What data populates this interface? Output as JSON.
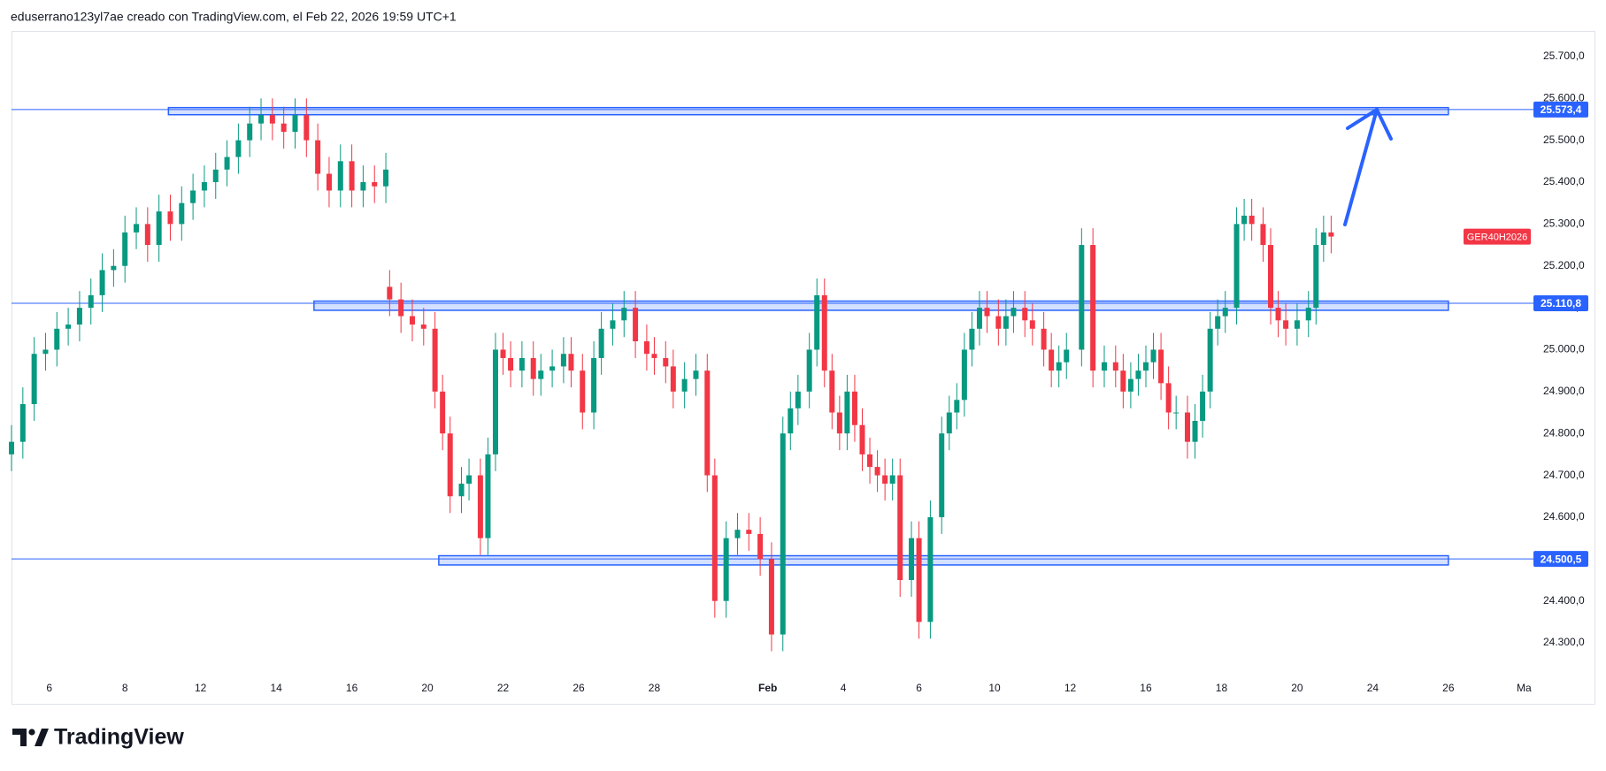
{
  "header": {
    "text": "eduserrano123yl7ae creado con TradingView.com, el Feb 22, 2026 19:59 UTC+1"
  },
  "brand": "TradingView",
  "chart_data": {
    "type": "candlestick",
    "symbol": "GER40H2026",
    "up_color": "#089981",
    "down_color": "#f23645",
    "level_color": "#2962ff",
    "xlim": [
      -1,
      39.25
    ],
    "ylim": [
      24222,
      25761
    ],
    "xticks": [
      {
        "value": 0,
        "label": "6"
      },
      {
        "value": 2,
        "label": "8"
      },
      {
        "value": 4,
        "label": "12"
      },
      {
        "value": 6,
        "label": "14"
      },
      {
        "value": 8,
        "label": "16"
      },
      {
        "value": 10,
        "label": "20"
      },
      {
        "value": 12,
        "label": "22"
      },
      {
        "value": 14,
        "label": "26"
      },
      {
        "value": 16,
        "label": "28"
      },
      {
        "value": 19,
        "label": "Feb"
      },
      {
        "value": 21,
        "label": "4"
      },
      {
        "value": 23,
        "label": "6"
      },
      {
        "value": 25,
        "label": "10"
      },
      {
        "value": 27,
        "label": "12"
      },
      {
        "value": 29,
        "label": "16"
      },
      {
        "value": 31,
        "label": "18"
      },
      {
        "value": 33,
        "label": "20"
      },
      {
        "value": 35,
        "label": "24"
      },
      {
        "value": 37,
        "label": "26"
      },
      {
        "value": 39,
        "label": "Ma"
      }
    ],
    "yticks": [
      {
        "value": 24300,
        "label": "24.300,0"
      },
      {
        "value": 24400,
        "label": "24.400,0"
      },
      {
        "value": 24500,
        "label": "24.500,0"
      },
      {
        "value": 24600,
        "label": "24.600,0"
      },
      {
        "value": 24700,
        "label": "24.700,0"
      },
      {
        "value": 24800,
        "label": "24.800,0"
      },
      {
        "value": 24900,
        "label": "24.900,0"
      },
      {
        "value": 25000,
        "label": "25.000,0"
      },
      {
        "value": 25100,
        "label": "25.100,0"
      },
      {
        "value": 25200,
        "label": "25.200,0"
      },
      {
        "value": 25300,
        "label": "25.300,0"
      },
      {
        "value": 25400,
        "label": "25.400,0"
      },
      {
        "value": 25500,
        "label": "25.500,0"
      },
      {
        "value": 25600,
        "label": "25.600,0"
      },
      {
        "value": 25700,
        "label": "25.700,0"
      }
    ],
    "levels": [
      {
        "value": 25573.4,
        "label": "25.573,4"
      },
      {
        "value": 25110.8,
        "label": "25.110,8"
      },
      {
        "value": 24500.5,
        "label": "24.500,5"
      }
    ],
    "zones": [
      {
        "x0": 3.15,
        "x1": 37,
        "y0": 25561,
        "y1": 25578
      },
      {
        "x0": 7,
        "x1": 37,
        "y0": 25094,
        "y1": 25116
      },
      {
        "x0": 10.3,
        "x1": 37,
        "y0": 24486,
        "y1": 24508
      }
    ],
    "x": [
      -1.0,
      -0.7,
      -0.4,
      -0.1,
      0.2,
      0.5,
      0.8,
      1.1,
      1.4,
      1.7,
      2.0,
      2.3,
      2.6,
      2.9,
      3.2,
      3.5,
      3.8,
      4.1,
      4.4,
      4.7,
      5.0,
      5.3,
      5.6,
      5.9,
      6.2,
      6.5,
      6.8,
      7.1,
      7.4,
      7.7,
      8.0,
      8.3,
      8.6,
      8.9,
      9.0,
      9.3,
      9.6,
      9.9,
      10.2,
      10.4,
      10.6,
      10.9,
      11.1,
      11.4,
      11.6,
      11.8,
      12.0,
      12.2,
      12.5,
      12.8,
      13.0,
      13.3,
      13.6,
      13.8,
      14.1,
      14.4,
      14.6,
      14.9,
      15.2,
      15.5,
      15.8,
      16.0,
      16.3,
      16.5,
      16.8,
      17.1,
      17.4,
      17.6,
      17.9,
      18.2,
      18.5,
      18.8,
      19.1,
      19.4,
      19.6,
      19.8,
      20.1,
      20.3,
      20.5,
      20.7,
      20.9,
      21.1,
      21.3,
      21.5,
      21.7,
      21.9,
      22.1,
      22.3,
      22.5,
      22.8,
      23.0,
      23.3,
      23.6,
      23.8,
      24.0,
      24.2,
      24.4,
      24.6,
      24.8,
      25.1,
      25.3,
      25.5,
      25.8,
      26.0,
      26.3,
      26.5,
      26.7,
      26.9,
      27.3,
      27.6,
      27.9,
      28.2,
      28.4,
      28.6,
      28.8,
      29.0,
      29.2,
      29.4,
      29.6,
      29.8,
      30.1,
      30.3,
      30.5,
      30.7,
      30.9,
      31.1,
      31.4,
      31.6,
      31.8,
      32.1,
      32.3,
      32.5,
      32.7,
      33.0,
      33.3,
      33.5,
      33.7,
      33.9
    ],
    "open": [
      24750,
      24780,
      24870,
      24990,
      25000,
      25050,
      25060,
      25100,
      25130,
      25190,
      25200,
      25280,
      25300,
      25250,
      25330,
      25300,
      25350,
      25380,
      25400,
      25430,
      25460,
      25500,
      25540,
      25560,
      25540,
      25520,
      25560,
      25500,
      25420,
      25380,
      25450,
      25380,
      25400,
      25390,
      25150,
      25120,
      25080,
      25060,
      25050,
      24900,
      24800,
      24650,
      24680,
      24700,
      24550,
      24750,
      25000,
      24980,
      24950,
      24980,
      24930,
      24950,
      24960,
      24990,
      24950,
      24850,
      24980,
      25050,
      25070,
      25100,
      25020,
      24990,
      24980,
      24960,
      24900,
      24930,
      24950,
      24700,
      24400,
      24550,
      24570,
      24560,
      24500,
      24320,
      24800,
      24860,
      24900,
      25000,
      25130,
      24950,
      24850,
      24800,
      24900,
      24820,
      24750,
      24720,
      24700,
      24680,
      24700,
      24450,
      24550,
      24350,
      24600,
      24800,
      24850,
      24880,
      25000,
      25050,
      25100,
      25080,
      25050,
      25080,
      25100,
      25070,
      25050,
      25000,
      24950,
      24970,
      25000,
      25250,
      24950,
      24970,
      24950,
      24900,
      24930,
      24950,
      24970,
      25000,
      24920,
      24850,
      24850,
      24780,
      24830,
      24900,
      25050,
      25080,
      25100,
      25300,
      25320,
      25300,
      25250,
      25100,
      25070,
      25050,
      25070,
      25100,
      25250,
      25280
    ],
    "high": [
      24820,
      24910,
      25030,
      25040,
      25090,
      25100,
      25140,
      25170,
      25230,
      25240,
      25320,
      25340,
      25340,
      25370,
      25370,
      25390,
      25420,
      25440,
      25470,
      25500,
      25540,
      25580,
      25600,
      25600,
      25580,
      25600,
      25600,
      25540,
      25460,
      25490,
      25490,
      25440,
      25440,
      25470,
      25190,
      25160,
      25120,
      25100,
      25090,
      24940,
      24840,
      24720,
      24740,
      24740,
      24790,
      25040,
      25040,
      25020,
      25020,
      25020,
      24990,
      25000,
      25030,
      25030,
      24990,
      25020,
      25090,
      25110,
      25140,
      25140,
      25060,
      25030,
      25020,
      25000,
      24970,
      24990,
      24990,
      24740,
      24590,
      24610,
      24610,
      24600,
      24540,
      24840,
      24900,
      24940,
      25040,
      25170,
      25170,
      24990,
      24890,
      24940,
      24940,
      24860,
      24790,
      24760,
      24740,
      24740,
      24740,
      24590,
      24590,
      24640,
      24840,
      24890,
      24920,
      25040,
      25090,
      25140,
      25140,
      25120,
      25120,
      25140,
      25140,
      25110,
      25090,
      25040,
      25010,
      25040,
      25290,
      25290,
      25010,
      25010,
      24990,
      24970,
      24990,
      25010,
      25040,
      25040,
      24960,
      24890,
      24890,
      24870,
      24940,
      25090,
      25120,
      25140,
      25340,
      25360,
      25360,
      25340,
      25290,
      25140,
      25110,
      25110,
      25140,
      25290,
      25320,
      25320
    ],
    "low": [
      24710,
      24740,
      24830,
      24950,
      24960,
      25010,
      25020,
      25060,
      25090,
      25150,
      25160,
      25240,
      25210,
      25210,
      25260,
      25260,
      25310,
      25340,
      25360,
      25390,
      25420,
      25460,
      25500,
      25500,
      25480,
      25480,
      25460,
      25380,
      25340,
      25340,
      25340,
      25340,
      25350,
      25350,
      25080,
      25040,
      25020,
      25010,
      24860,
      24760,
      24610,
      24610,
      24640,
      24510,
      24510,
      24710,
      24940,
      24910,
      24910,
      24890,
      24890,
      24910,
      24920,
      24910,
      24810,
      24810,
      24940,
      25010,
      25030,
      24980,
      24950,
      24940,
      24920,
      24860,
      24860,
      24890,
      24660,
      24360,
      24360,
      24510,
      24520,
      24460,
      24280,
      24280,
      24760,
      24820,
      24860,
      24960,
      24910,
      24810,
      24760,
      24760,
      24780,
      24710,
      24680,
      24660,
      24640,
      24640,
      24410,
      24410,
      24310,
      24310,
      24560,
      24760,
      24810,
      24840,
      24960,
      25010,
      25040,
      25010,
      25010,
      25040,
      25030,
      25010,
      24960,
      24910,
      24910,
      24930,
      24960,
      24910,
      24910,
      24910,
      24860,
      24860,
      24890,
      24910,
      24930,
      24880,
      24810,
      24810,
      24740,
      24740,
      24790,
      24860,
      25010,
      25040,
      25060,
      25260,
      25260,
      25210,
      25060,
      25030,
      25010,
      25010,
      25030,
      25060,
      25210,
      25230
    ],
    "close": [
      24780,
      24870,
      24990,
      25000,
      25050,
      25060,
      25100,
      25130,
      25190,
      25200,
      25280,
      25300,
      25250,
      25330,
      25300,
      25350,
      25380,
      25400,
      25430,
      25460,
      25500,
      25540,
      25560,
      25540,
      25520,
      25560,
      25500,
      25420,
      25380,
      25450,
      25380,
      25400,
      25390,
      25430,
      25120,
      25080,
      25060,
      25050,
      24900,
      24800,
      24650,
      24680,
      24700,
      24550,
      24750,
      25000,
      24980,
      24950,
      24980,
      24930,
      24950,
      24960,
      24990,
      24950,
      24850,
      24980,
      25050,
      25070,
      25100,
      25020,
      24990,
      24980,
      24960,
      24900,
      24930,
      24950,
      24700,
      24400,
      24550,
      24570,
      24560,
      24500,
      24320,
      24800,
      24860,
      24900,
      25000,
      25130,
      24950,
      24850,
      24800,
      24900,
      24820,
      24750,
      24720,
      24700,
      24680,
      24700,
      24450,
      24550,
      24350,
      24600,
      24800,
      24850,
      24880,
      25000,
      25050,
      25100,
      25080,
      25050,
      25080,
      25100,
      25070,
      25050,
      25000,
      24950,
      24970,
      25000,
      25250,
      24950,
      24970,
      24950,
      24900,
      24930,
      24950,
      24970,
      25000,
      24920,
      24850,
      24850,
      24780,
      24830,
      24900,
      25050,
      25080,
      25100,
      25300,
      25320,
      25300,
      25250,
      25100,
      25070,
      25050,
      25070,
      25100,
      25250,
      25280,
      25270
    ]
  }
}
